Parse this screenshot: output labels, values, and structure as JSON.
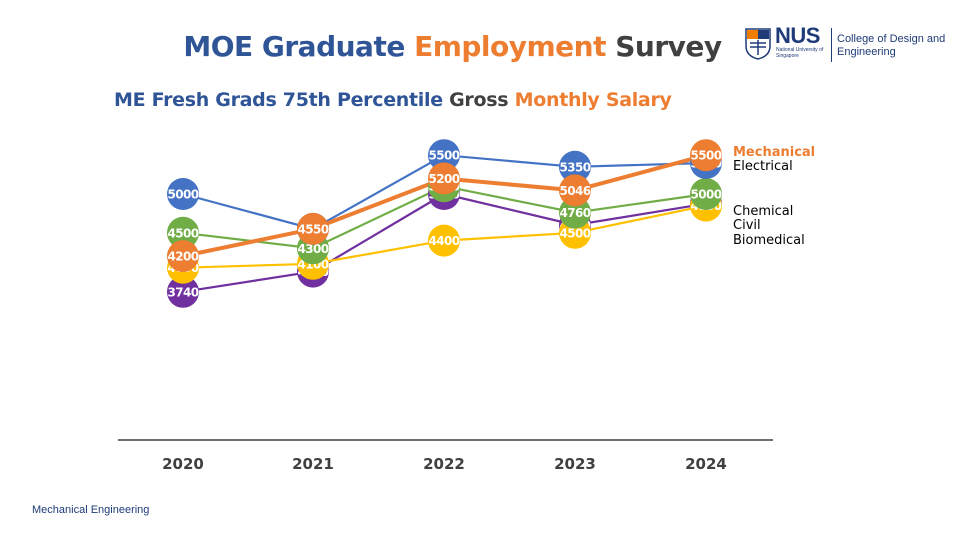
{
  "header": {
    "title_part1": "MOE Graduate",
    "title_part2": "Employment",
    "title_part3": "Survey",
    "subtitle_part1": "ME Fresh Grads 75th Percentile",
    "subtitle_part2": "Gross",
    "subtitle_part3": "Monthly Salary"
  },
  "logo": {
    "nus": "NUS",
    "nus_sub": "National University of Singapore",
    "college": "College of Design and Engineering"
  },
  "footer": {
    "text": "Mechanical Engineering"
  },
  "colors": {
    "title_blue": "#2f5597",
    "title_orange": "#ed7d31",
    "title_dark": "#404040"
  },
  "chart_data": {
    "type": "line",
    "x": [
      "2020",
      "2021",
      "2022",
      "2023",
      "2024"
    ],
    "ylim": [
      3000,
      6000
    ],
    "grid": false,
    "legend_position": "right of final data points",
    "series": [
      {
        "name": "Biomedical",
        "color": "#7030a0",
        "values": [
          3740,
          4000,
          5000,
          4600,
          4875
        ]
      },
      {
        "name": "Civil",
        "color": "#ffc000",
        "values": [
          4050,
          4100,
          4400,
          4500,
          4850
        ]
      },
      {
        "name": "Chemical",
        "color": "#70ad47",
        "values": [
          4500,
          4300,
          5100,
          4760,
          5000
        ]
      },
      {
        "name": "Electrical",
        "color": "#4472c4",
        "values": [
          5000,
          4550,
          5500,
          5350,
          5400
        ]
      },
      {
        "name": "Mechanical",
        "color": "#ed7d31",
        "values": [
          4200,
          4550,
          5200,
          5046,
          5500
        ]
      }
    ]
  }
}
